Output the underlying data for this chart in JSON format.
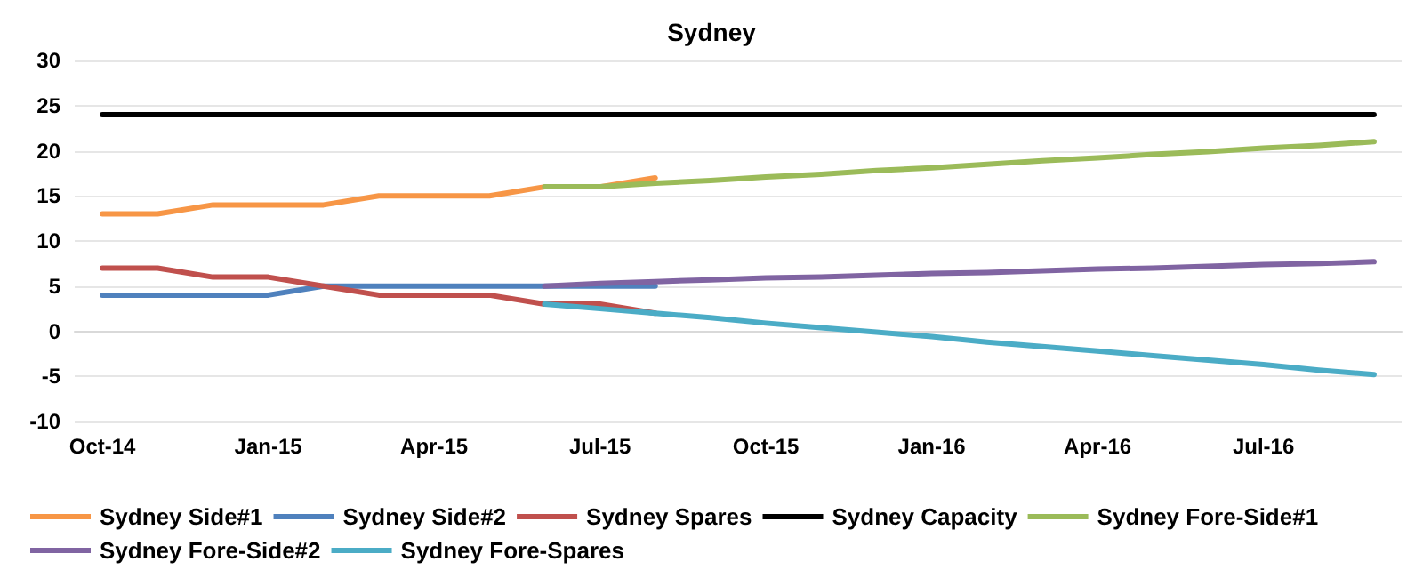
{
  "chart_data": {
    "type": "line",
    "title": "Sydney",
    "categories": [
      "Oct-14",
      null,
      null,
      "Jan-15",
      null,
      null,
      "Apr-15",
      null,
      null,
      "Jul-15",
      null,
      null,
      "Oct-15",
      null,
      null,
      "Jan-16",
      null,
      null,
      "Apr-16",
      null,
      null,
      "Jul-16",
      null,
      null
    ],
    "series": [
      {
        "name": "Sydney Side#1",
        "color": "#f79646",
        "values": [
          13,
          13,
          14,
          14,
          14,
          15,
          15,
          15,
          16,
          16,
          17,
          null,
          null,
          null,
          null,
          null,
          null,
          null,
          null,
          null,
          null,
          null,
          null,
          null
        ]
      },
      {
        "name": "Sydney Side#2",
        "color": "#4f81bd",
        "values": [
          4,
          4,
          4,
          4,
          5,
          5,
          5,
          5,
          5,
          5,
          5,
          null,
          null,
          null,
          null,
          null,
          null,
          null,
          null,
          null,
          null,
          null,
          null,
          null
        ]
      },
      {
        "name": "Sydney Spares",
        "color": "#c0504d",
        "values": [
          7,
          7,
          6,
          6,
          5,
          4,
          4,
          4,
          3,
          3,
          2,
          null,
          null,
          null,
          null,
          null,
          null,
          null,
          null,
          null,
          null,
          null,
          null,
          null
        ]
      },
      {
        "name": "Sydney Capacity",
        "color": "#000000",
        "values": [
          24,
          24,
          24,
          24,
          24,
          24,
          24,
          24,
          24,
          24,
          24,
          24,
          24,
          24,
          24,
          24,
          24,
          24,
          24,
          24,
          24,
          24,
          24,
          24
        ]
      },
      {
        "name": "Sydney Fore-Side#1",
        "color": "#9bbb59",
        "values": [
          null,
          null,
          null,
          null,
          null,
          null,
          null,
          null,
          16,
          16,
          16.4,
          16.7,
          17.1,
          17.4,
          17.8,
          18.1,
          18.5,
          18.9,
          19.2,
          19.6,
          19.9,
          20.3,
          20.6,
          21
        ]
      },
      {
        "name": "Sydney Fore-Side#2",
        "color": "#8064a2",
        "values": [
          null,
          null,
          null,
          null,
          null,
          null,
          null,
          null,
          5,
          5.3,
          5.5,
          5.7,
          5.9,
          6,
          6.2,
          6.4,
          6.5,
          6.7,
          6.9,
          7,
          7.2,
          7.4,
          7.5,
          7.7
        ]
      },
      {
        "name": "Sydney Fore-Spares",
        "color": "#4bacc6",
        "values": [
          null,
          null,
          null,
          null,
          null,
          null,
          null,
          null,
          3,
          2.5,
          2,
          1.5,
          0.9,
          0.4,
          -0.1,
          -0.6,
          -1.2,
          -1.7,
          -2.2,
          -2.7,
          -3.2,
          -3.7,
          -4.3,
          -4.8
        ]
      }
    ],
    "ylim": [
      -10,
      30
    ],
    "yticks": [
      -10,
      -5,
      0,
      5,
      10,
      15,
      20,
      25,
      30
    ],
    "grid": "y",
    "legend": "bottom",
    "marker": "none",
    "line_style": "solid"
  }
}
